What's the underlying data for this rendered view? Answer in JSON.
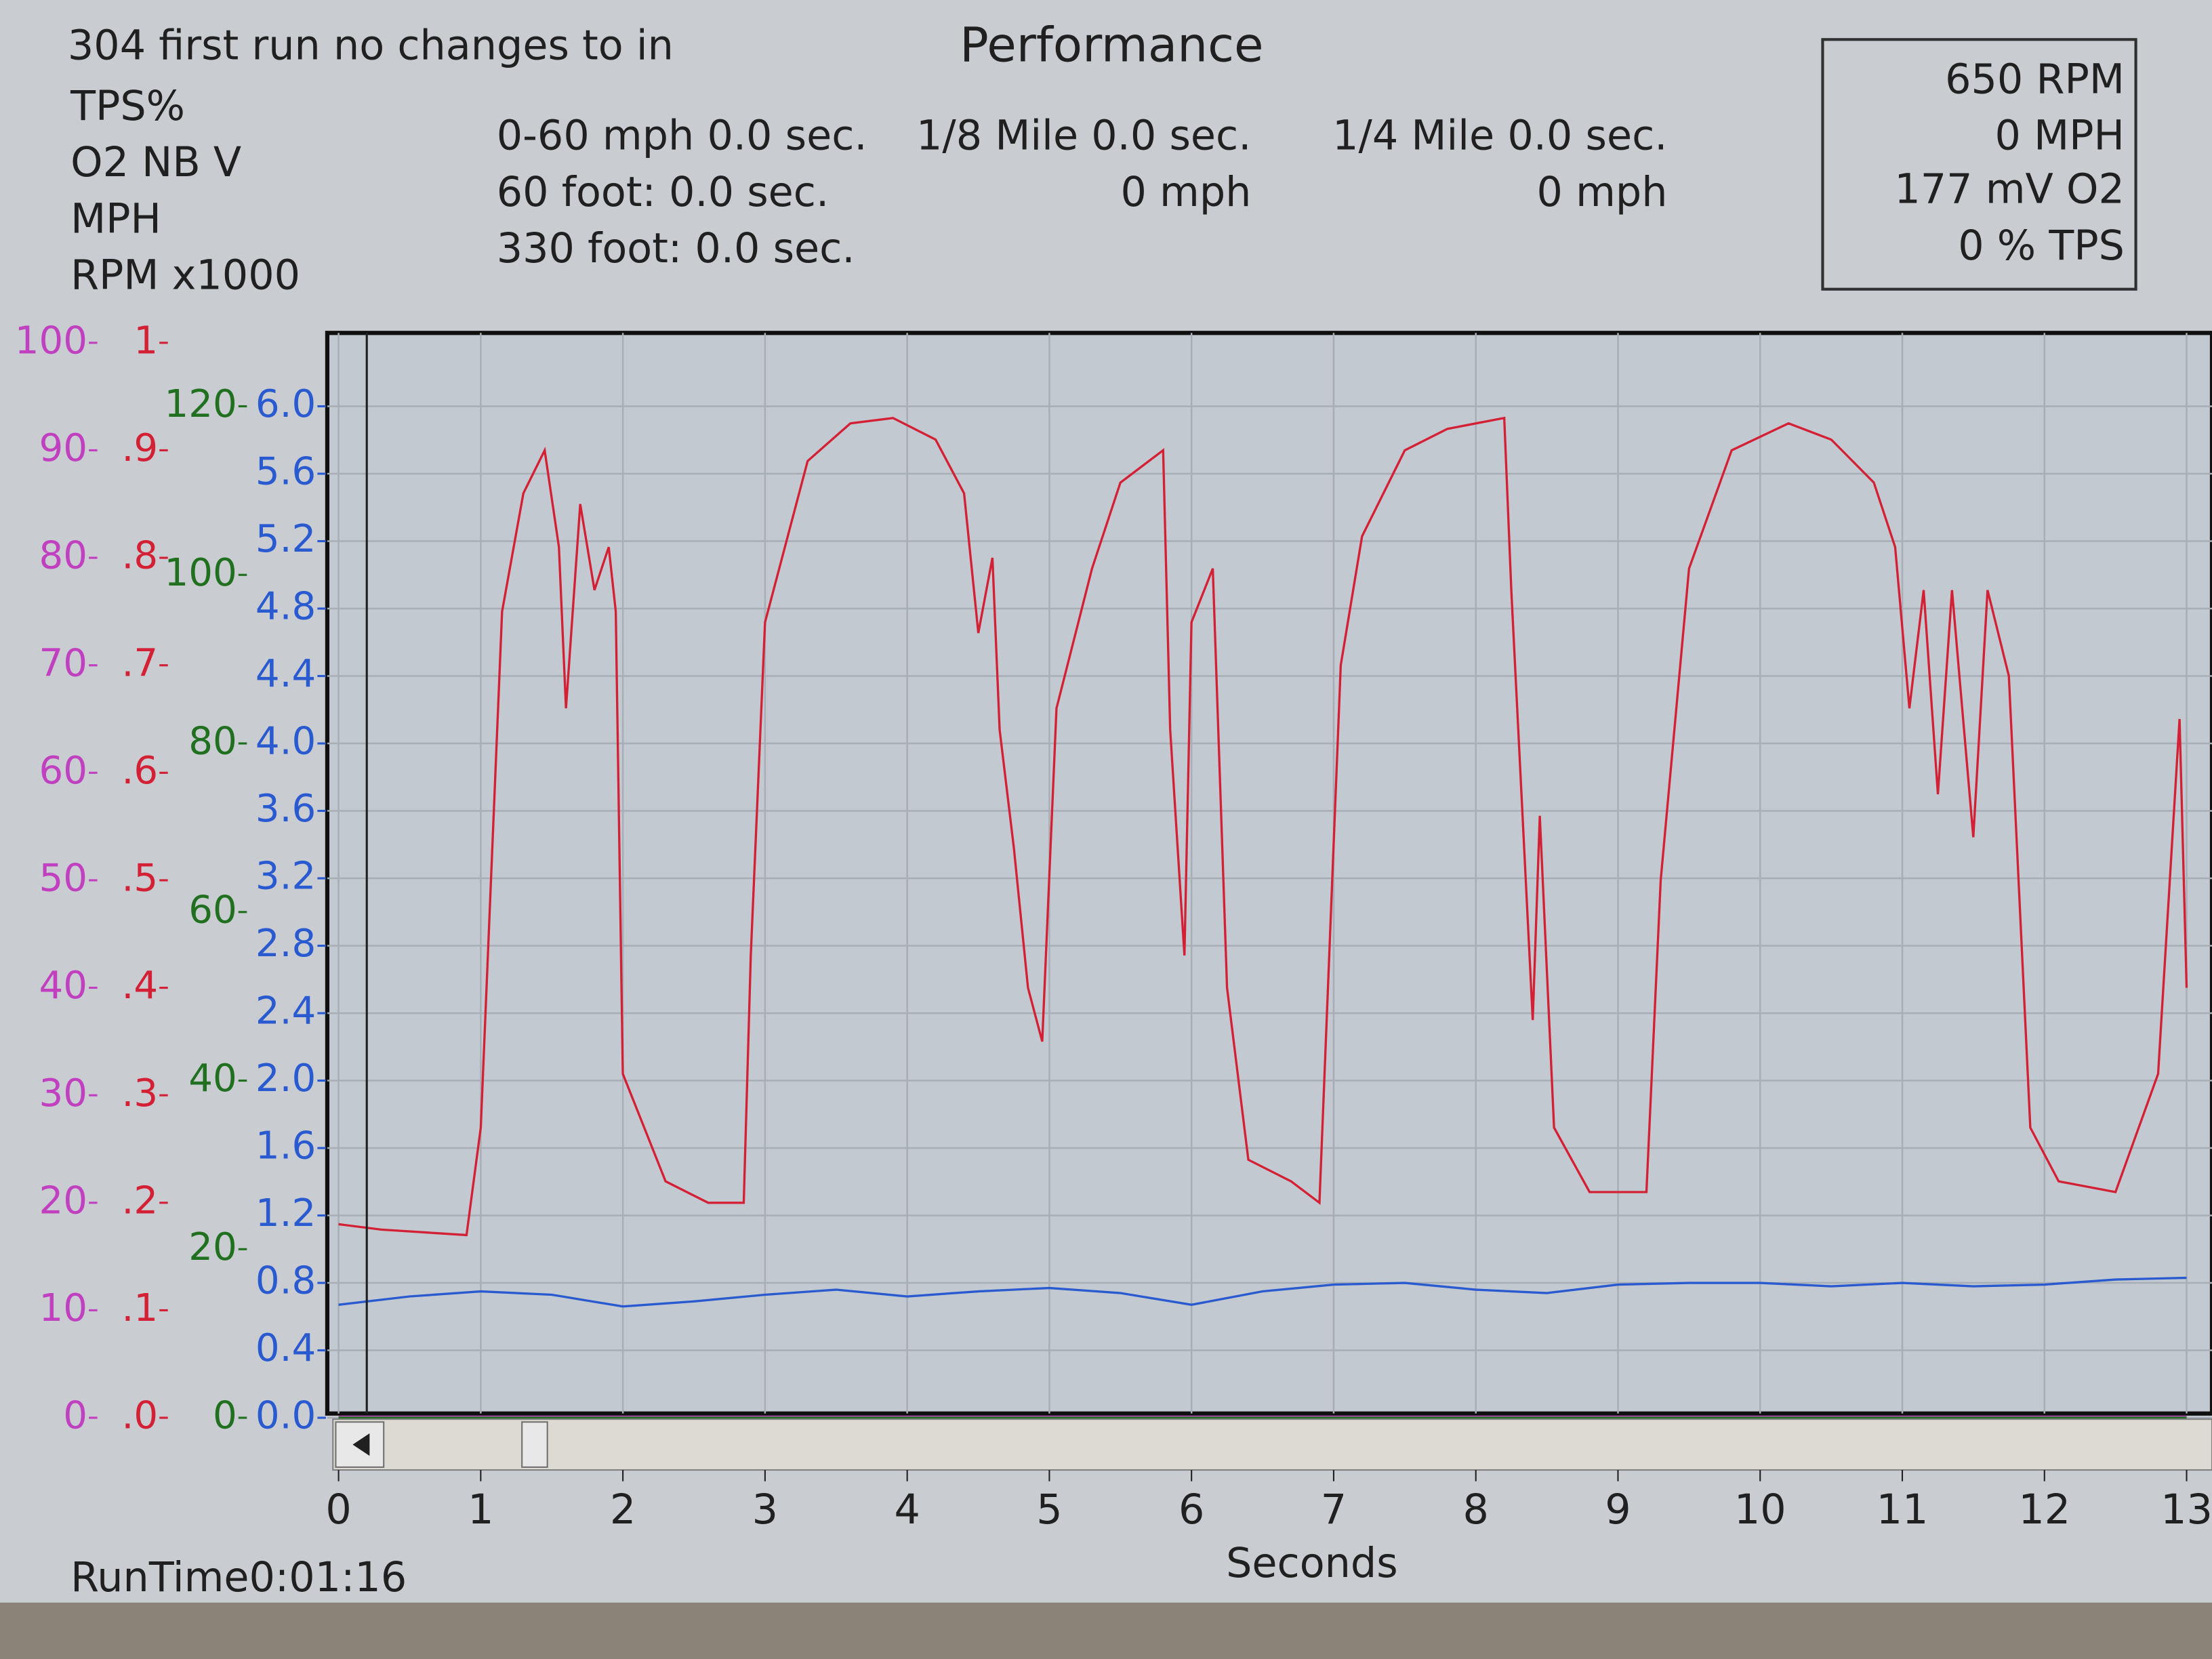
{
  "header": {
    "title": "304 first run no changes to in",
    "center_title": "Performance"
  },
  "stats": {
    "col1": [
      "0-60 mph 0.0 sec.",
      "60 foot:  0.0 sec.",
      "330 foot: 0.0 sec."
    ],
    "col2": [
      "1/8 Mile 0.0 sec.",
      "0 mph"
    ],
    "col3": [
      "1/4 Mile 0.0 sec.",
      "0 mph"
    ]
  },
  "readout": [
    "650 RPM",
    "0 MPH",
    "177 mV O2",
    "0 % TPS"
  ],
  "run_time": "RunTime0:01:16",
  "chart_data": {
    "type": "line",
    "xlabel": "Seconds",
    "grid": true,
    "xlim": [
      0,
      13
    ],
    "xticks": [
      0,
      1,
      2,
      3,
      4,
      5,
      6,
      7,
      8,
      9,
      10,
      11,
      12,
      13
    ],
    "ylim": [
      0,
      100
    ],
    "yticks": [
      0,
      10,
      20,
      30,
      40,
      50,
      60,
      70,
      80,
      90,
      100
    ],
    "y2lim": [
      0,
      1
    ],
    "y2ticks": [
      {
        "value": 0,
        "label": ".0"
      },
      {
        "value": 0.1,
        "label": ".1"
      },
      {
        "value": 0.2,
        "label": ".2"
      },
      {
        "value": 0.3,
        "label": ".3"
      },
      {
        "value": 0.4,
        "label": ".4"
      },
      {
        "value": 0.5,
        "label": ".5"
      },
      {
        "value": 0.6,
        "label": ".6"
      },
      {
        "value": 0.7,
        "label": ".7"
      },
      {
        "value": 0.8,
        "label": ".8"
      },
      {
        "value": 0.9,
        "label": ".9"
      },
      1
    ],
    "y3lim": [
      0,
      120
    ],
    "y3ticks": [
      0,
      20,
      40,
      60,
      80,
      100,
      120
    ],
    "y4lim": [
      0,
      6
    ],
    "y4ticks": [
      {
        "value": 0,
        "label": "0.0"
      },
      0.4,
      0.8,
      1.2,
      1.6,
      {
        "value": 2,
        "label": "2.0"
      },
      2.4,
      2.8,
      3.2,
      3.6,
      {
        "value": 4,
        "label": "4.0"
      },
      4.4,
      4.8,
      5.2,
      5.6,
      {
        "value": 6,
        "label": "6.0"
      }
    ],
    "series": [
      {
        "name": "TPS%",
        "color": "#c040c0",
        "axis": "y",
        "x": [
          0,
          13
        ],
        "values": [
          0,
          0
        ]
      },
      {
        "name": "O2 NB V",
        "color": "#d42035",
        "axis": "y2",
        "x": [
          0,
          0.3,
          0.9,
          1.0,
          1.15,
          1.3,
          1.45,
          1.55,
          1.6,
          1.7,
          1.8,
          1.9,
          1.95,
          2.0,
          2.3,
          2.6,
          2.85,
          2.9,
          3.0,
          3.3,
          3.6,
          3.9,
          4.2,
          4.4,
          4.5,
          4.6,
          4.65,
          4.75,
          4.85,
          4.95,
          5.05,
          5.3,
          5.5,
          5.8,
          5.85,
          5.95,
          6.0,
          6.15,
          6.25,
          6.4,
          6.7,
          6.9,
          7.05,
          7.2,
          7.5,
          7.8,
          8.2,
          8.25,
          8.4,
          8.45,
          8.55,
          8.8,
          9.2,
          9.3,
          9.5,
          9.8,
          10.2,
          10.5,
          10.8,
          10.95,
          11.05,
          11.15,
          11.25,
          11.35,
          11.5,
          11.6,
          11.75,
          11.9,
          12.1,
          12.5,
          12.8,
          12.95,
          13.0
        ],
        "values": [
          0.18,
          0.175,
          0.17,
          0.27,
          0.75,
          0.86,
          0.9,
          0.81,
          0.66,
          0.85,
          0.77,
          0.81,
          0.75,
          0.32,
          0.22,
          0.2,
          0.2,
          0.43,
          0.74,
          0.89,
          0.925,
          0.93,
          0.91,
          0.86,
          0.73,
          0.8,
          0.64,
          0.53,
          0.4,
          0.35,
          0.66,
          0.79,
          0.87,
          0.9,
          0.64,
          0.43,
          0.74,
          0.79,
          0.4,
          0.24,
          0.22,
          0.2,
          0.7,
          0.82,
          0.9,
          0.92,
          0.93,
          0.77,
          0.37,
          0.56,
          0.27,
          0.21,
          0.21,
          0.5,
          0.79,
          0.9,
          0.925,
          0.91,
          0.87,
          0.81,
          0.66,
          0.77,
          0.58,
          0.77,
          0.54,
          0.77,
          0.69,
          0.27,
          0.22,
          0.21,
          0.32,
          0.65,
          0.4
        ]
      },
      {
        "name": "MPH",
        "color": "#207020",
        "axis": "y3",
        "x": [
          0,
          13
        ],
        "values": [
          0,
          0
        ]
      },
      {
        "name": "RPM x1000",
        "color": "#2a5ad0",
        "axis": "y4",
        "x": [
          0,
          0.5,
          1,
          1.5,
          2,
          2.5,
          3,
          3.5,
          4,
          4.5,
          5,
          5.5,
          6,
          6.5,
          7,
          7.5,
          8,
          8.5,
          9,
          9.5,
          10,
          10.5,
          11,
          11.5,
          12,
          12.5,
          13
        ],
        "values": [
          0.67,
          0.72,
          0.75,
          0.73,
          0.66,
          0.69,
          0.73,
          0.76,
          0.72,
          0.75,
          0.77,
          0.74,
          0.67,
          0.75,
          0.79,
          0.8,
          0.76,
          0.74,
          0.79,
          0.8,
          0.8,
          0.78,
          0.8,
          0.78,
          0.79,
          0.82,
          0.83
        ]
      }
    ]
  }
}
